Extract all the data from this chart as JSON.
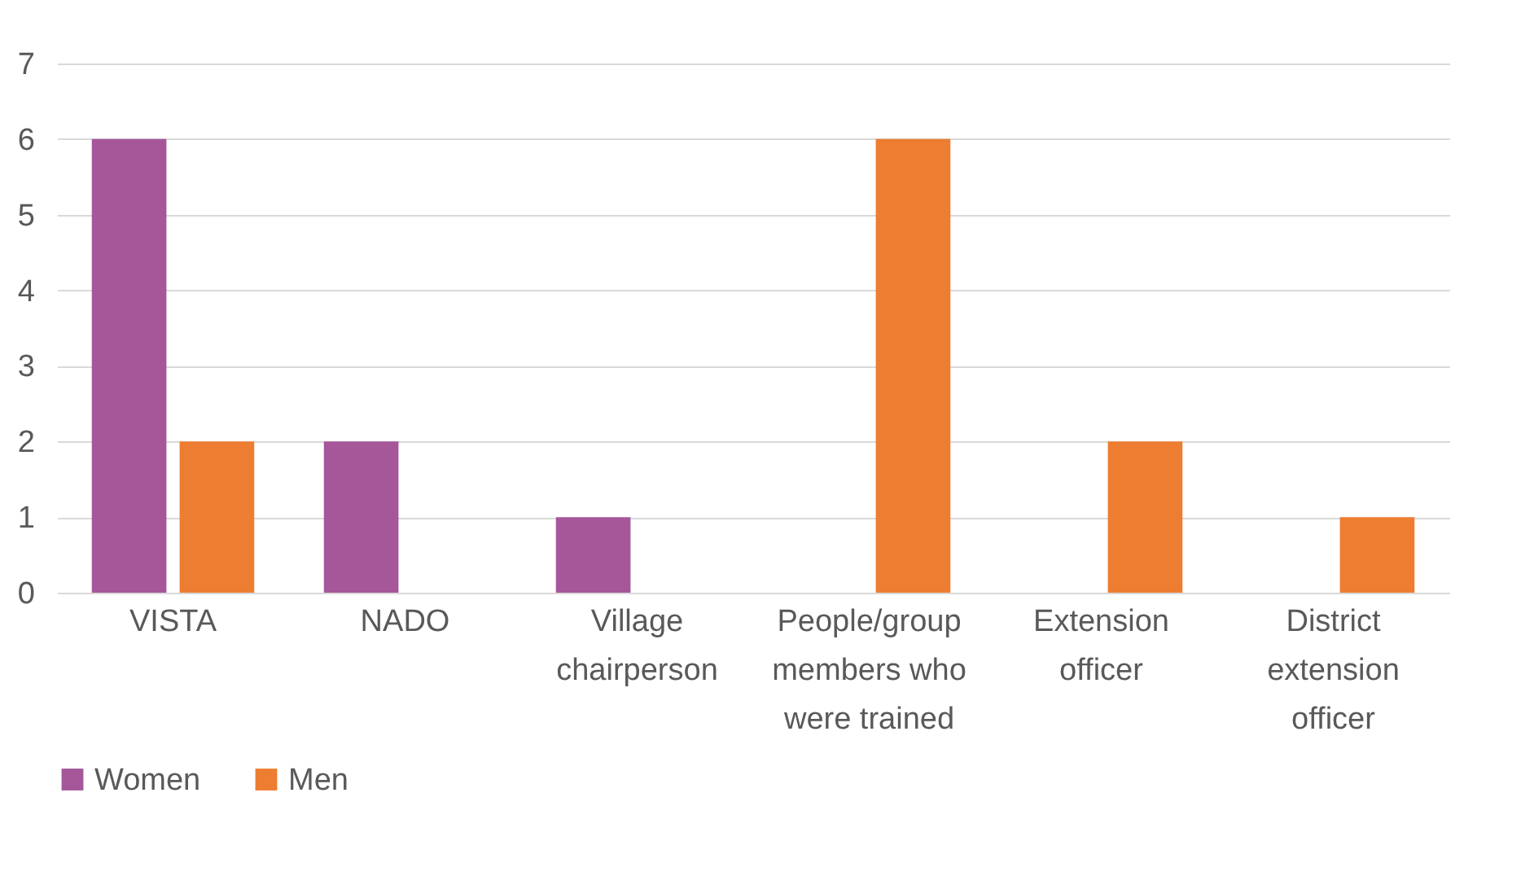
{
  "chart_data": {
    "type": "bar",
    "categories": [
      "VISTA",
      "NADO",
      "Village chairperson",
      "People/group members who were trained",
      "Extension officer",
      "District extension officer"
    ],
    "series": [
      {
        "name": "Women",
        "color": "#a5579a",
        "values": [
          6,
          2,
          1,
          null,
          null,
          null
        ]
      },
      {
        "name": "Men",
        "color": "#ed7d31",
        "values": [
          2,
          null,
          null,
          6,
          2,
          1
        ]
      }
    ],
    "ylim": [
      0,
      7
    ],
    "yticks": [
      0,
      1,
      2,
      3,
      4,
      5,
      6,
      7
    ],
    "grid": "y",
    "legend": "bottom"
  }
}
